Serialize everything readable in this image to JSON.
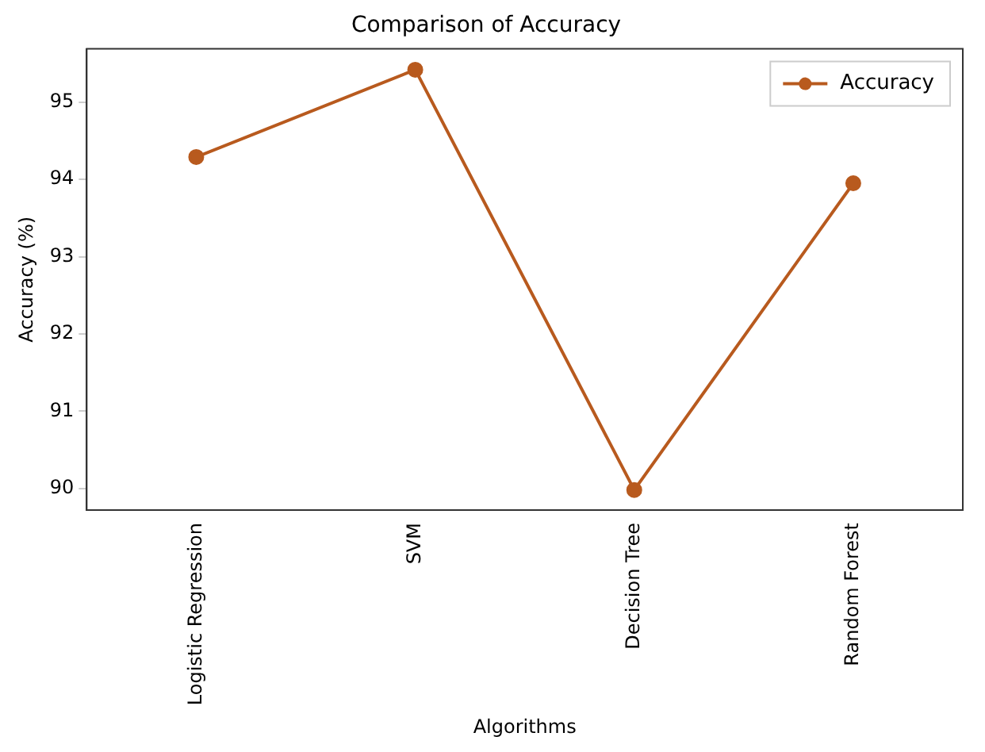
{
  "chart_data": {
    "type": "line",
    "title": "Comparison of Accuracy",
    "xlabel": "Algorithms",
    "ylabel": "Accuracy (%)",
    "categories": [
      "Logistic Regression",
      "SVM",
      "Decision Tree",
      "Random Forest"
    ],
    "series": [
      {
        "name": "Accuracy",
        "color": "#b85a1e",
        "values": [
          94.29,
          95.42,
          89.98,
          93.95
        ]
      }
    ],
    "ylim": [
      89.72,
      95.69
    ],
    "yticks": [
      90,
      91,
      92,
      93,
      94,
      95
    ],
    "grid": false,
    "legend": "top right",
    "marker": "circle",
    "line_style": "solid"
  }
}
